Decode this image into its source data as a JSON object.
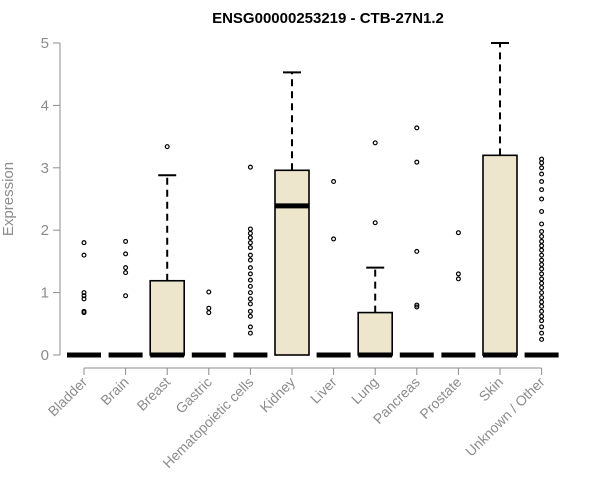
{
  "chart_data": {
    "type": "boxplot",
    "title": "ENSG00000253219 - CTB-27N1.2",
    "xlabel": "",
    "ylabel": "Expression",
    "ylim": [
      0,
      5
    ],
    "yticks": [
      0,
      1,
      2,
      3,
      4,
      5
    ],
    "box_fill": "#ede6cc",
    "axis_color": "#8c8c8c",
    "categories": [
      "Bladder",
      "Brain",
      "Breast",
      "Gastric",
      "Hematopoietic cells",
      "Kidney",
      "Liver",
      "Lung",
      "Pancreas",
      "Prostate",
      "Skin",
      "Unknown / Other"
    ],
    "boxes": [
      {
        "q1": 0,
        "median": 0,
        "q3": 0,
        "whisker_low": 0,
        "whisker_high": 0,
        "outliers": [
          0.68,
          0.7,
          0.9,
          0.95,
          1.0,
          1.6,
          1.8
        ]
      },
      {
        "q1": 0,
        "median": 0,
        "q3": 0,
        "whisker_low": 0,
        "whisker_high": 0,
        "outliers": [
          0.95,
          1.32,
          1.4,
          1.62,
          1.82
        ]
      },
      {
        "q1": 0,
        "median": 0,
        "q3": 1.19,
        "whisker_low": 0,
        "whisker_high": 2.88,
        "outliers": [
          3.34
        ]
      },
      {
        "q1": 0,
        "median": 0,
        "q3": 0,
        "whisker_low": 0,
        "whisker_high": 0,
        "outliers": [
          0.68,
          0.75,
          1.01
        ]
      },
      {
        "q1": 0,
        "median": 0,
        "q3": 0,
        "whisker_low": 0,
        "whisker_high": 0,
        "outliers": [
          0.35,
          0.45,
          0.62,
          0.7,
          0.82,
          0.9,
          1.0,
          1.1,
          1.2,
          1.3,
          1.4,
          1.52,
          1.6,
          1.72,
          1.8,
          1.88,
          1.95,
          2.02,
          3.01
        ]
      },
      {
        "q1": 0,
        "median": 2.39,
        "q3": 2.96,
        "whisker_low": 0,
        "whisker_high": 4.53,
        "outliers": []
      },
      {
        "q1": 0,
        "median": 0,
        "q3": 0,
        "whisker_low": 0,
        "whisker_high": 0,
        "outliers": [
          1.86,
          2.78
        ]
      },
      {
        "q1": 0,
        "median": 0,
        "q3": 0.68,
        "whisker_low": 0,
        "whisker_high": 1.4,
        "outliers": [
          2.12,
          3.4
        ]
      },
      {
        "q1": 0,
        "median": 0,
        "q3": 0,
        "whisker_low": 0,
        "whisker_high": 0,
        "outliers": [
          0.77,
          0.8,
          1.66,
          3.09,
          3.64
        ]
      },
      {
        "q1": 0,
        "median": 0,
        "q3": 0,
        "whisker_low": 0,
        "whisker_high": 0,
        "outliers": [
          1.22,
          1.3,
          1.96
        ]
      },
      {
        "q1": 0,
        "median": 0,
        "q3": 3.2,
        "whisker_low": 0,
        "whisker_high": 5.0,
        "outliers": []
      },
      {
        "q1": 0,
        "median": 0,
        "q3": 0,
        "whisker_low": 0,
        "whisker_high": 0,
        "outliers": [
          0.25,
          0.35,
          0.45,
          0.55,
          0.62,
          0.7,
          0.78,
          0.85,
          0.92,
          1.0,
          1.08,
          1.15,
          1.22,
          1.3,
          1.38,
          1.45,
          1.52,
          1.6,
          1.68,
          1.75,
          1.82,
          1.9,
          1.98,
          2.1,
          2.3,
          2.5,
          2.65,
          2.78,
          2.9,
          3.0,
          3.08,
          3.14
        ]
      }
    ]
  }
}
